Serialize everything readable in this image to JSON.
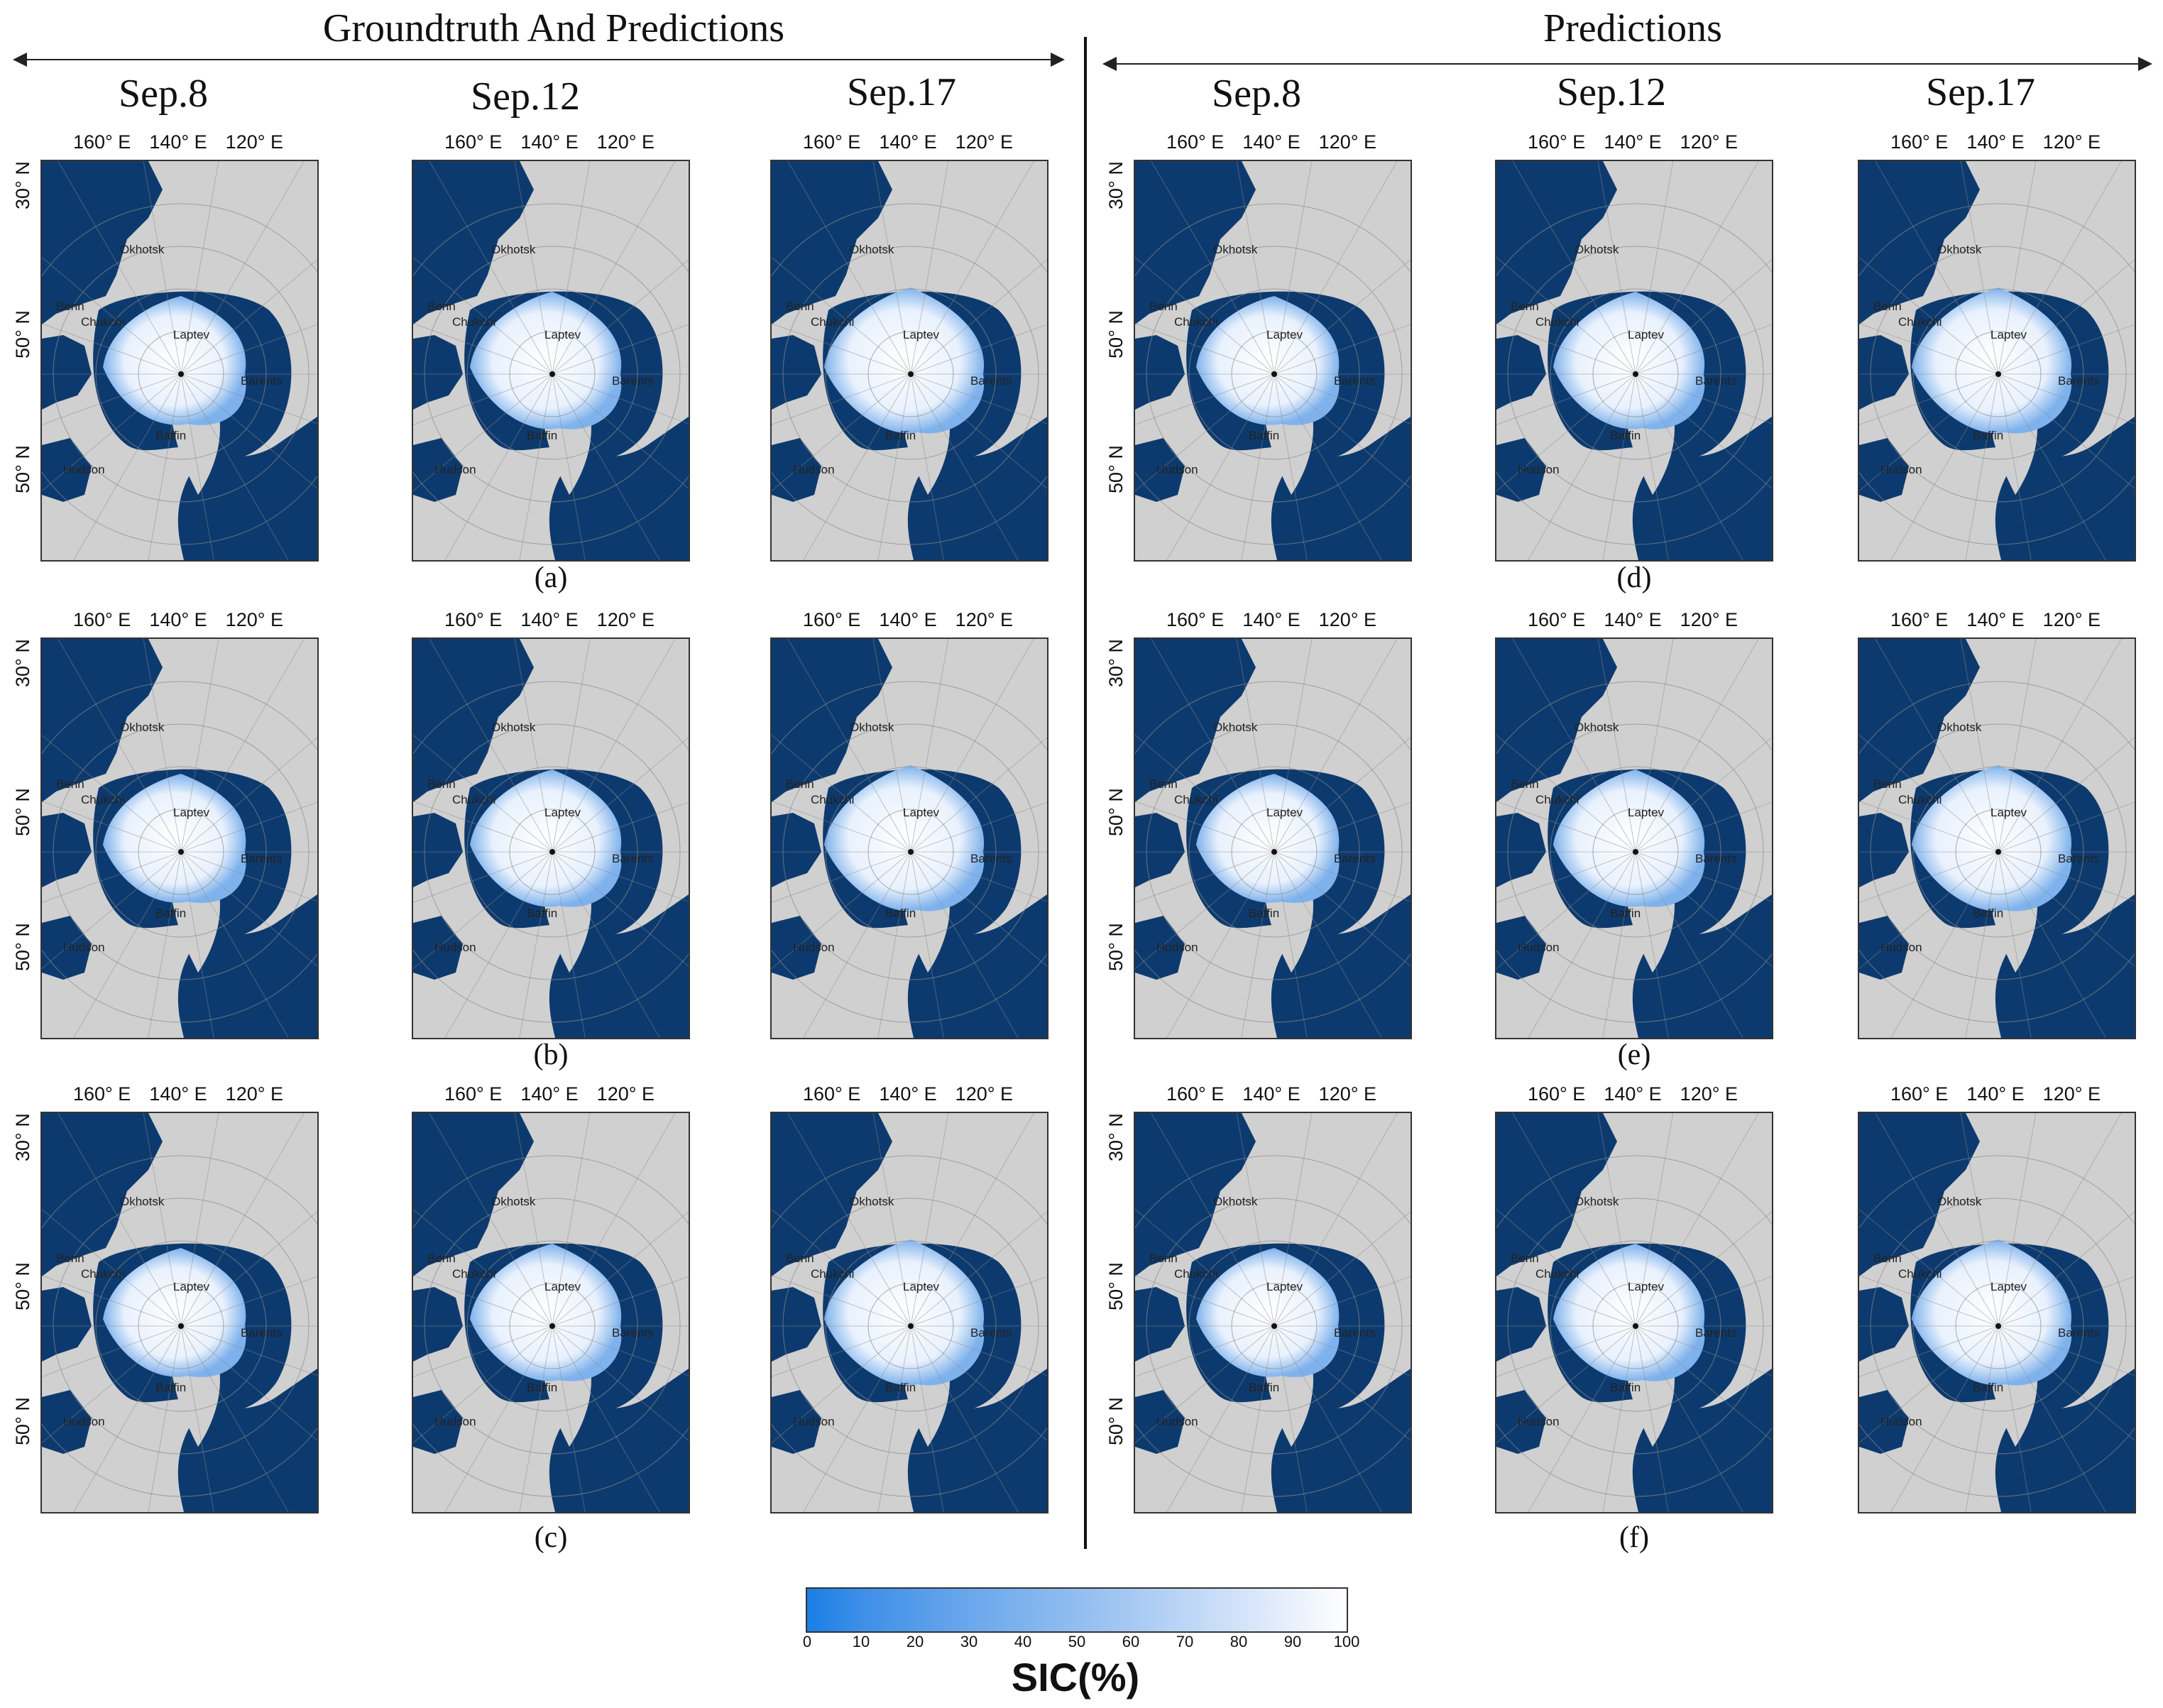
{
  "titles": {
    "left": "Groundtruth And Predictions",
    "right": "Predictions"
  },
  "dates": [
    "Sep.8",
    "Sep.12",
    "Sep.17"
  ],
  "map_labels": {
    "lon": [
      "160° E",
      "140° E",
      "120° E"
    ],
    "lat_top": "30° N",
    "lat_mid": "50° N",
    "lat_bot": "50° N",
    "seas": [
      "Okhotsk",
      "Berin",
      "Chukchi",
      "Laptev",
      "Barents",
      "Baffin",
      "Hudson"
    ]
  },
  "panels": [
    {
      "caption": "(a)"
    },
    {
      "caption": "(b)"
    },
    {
      "caption": "(c)"
    },
    {
      "caption": "(d)"
    },
    {
      "caption": "(e)"
    },
    {
      "caption": "(f)"
    }
  ],
  "colorbar": {
    "label": "SIC(%)",
    "ticks": [
      "0",
      "10",
      "20",
      "30",
      "40",
      "50",
      "60",
      "70",
      "80",
      "90",
      "100"
    ],
    "min_color": "#1a7fe6",
    "max_color": "#ffffff"
  },
  "colors": {
    "ocean": "#0d3a6e",
    "land": "#d0d0d0",
    "ice": "#e8f1fd"
  }
}
